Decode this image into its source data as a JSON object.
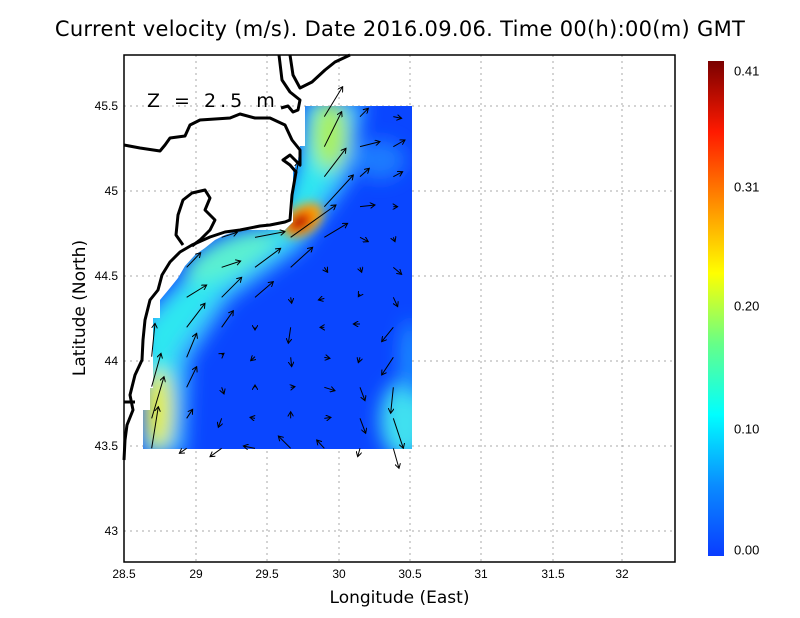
{
  "title": "Current velocity (m/s). Date 2016.09.06. Time 00(h):00(m) GMT",
  "depth_label": "Z = 2.5 m",
  "xlabel": "Longitude (East)",
  "ylabel": "Latitude (North)",
  "x_ticks": [
    "28.5",
    "29",
    "29.5",
    "30",
    "30.5",
    "31",
    "31.5",
    "32"
  ],
  "y_ticks": [
    "45.5",
    "45",
    "44.5",
    "44",
    "43.5",
    "43"
  ],
  "colorbar": {
    "ticks": [
      "0.41",
      "0.31",
      "0.20",
      "0.10",
      "0.00"
    ],
    "range": [
      0.0,
      0.41
    ],
    "colors": [
      "#0a3cff",
      "#0a8cff",
      "#00ffff",
      "#66ff88",
      "#ffff00",
      "#ff8c00",
      "#ff1a00",
      "#7a0000"
    ]
  },
  "map": {
    "lon_range": [
      28.5,
      32.36
    ],
    "lat_range": [
      42.82,
      45.8
    ],
    "data_extent": {
      "lon": [
        28.64,
        30.53
      ],
      "lat": [
        43.48,
        45.5
      ]
    },
    "max_speed_location": {
      "lon": 29.7,
      "lat": 44.8,
      "value": 0.41
    }
  }
}
